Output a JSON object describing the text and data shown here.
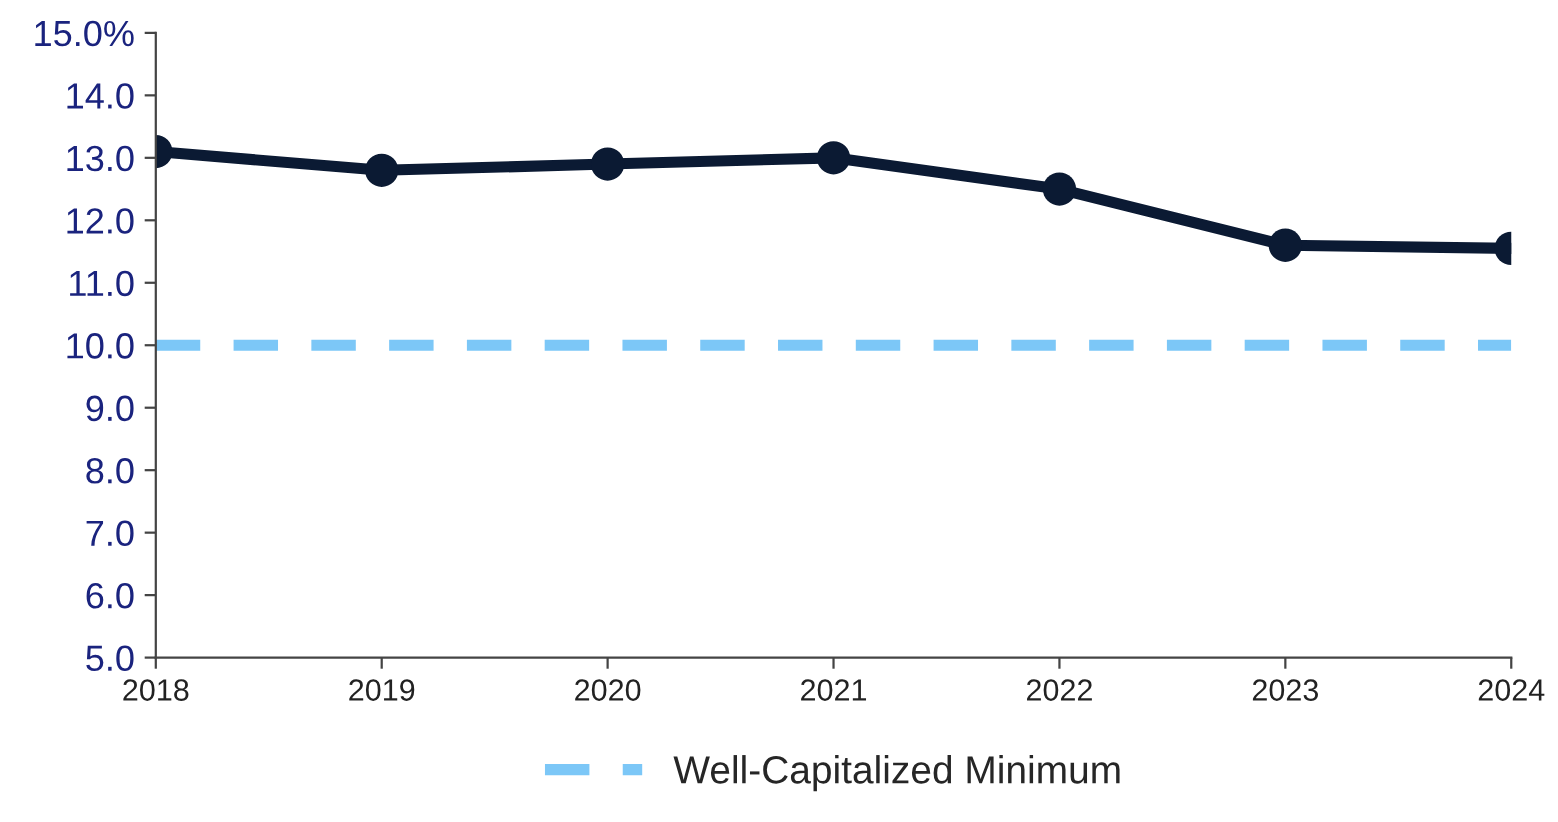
{
  "chart_data": {
    "type": "line",
    "x": [
      2018,
      2019,
      2020,
      2021,
      2022,
      2023,
      2024
    ],
    "series": [
      {
        "color": "#0b1a33",
        "values": [
          13.1,
          12.8,
          12.9,
          13.0,
          12.5,
          11.6,
          11.55
        ]
      }
    ],
    "ref_lines": [
      {
        "axis": "y",
        "value": 10.0,
        "label": "Well-Capitalized Minimum",
        "color": "#7cc7f7",
        "line_style": "dashed"
      }
    ],
    "xlim": [
      2018,
      2024
    ],
    "xticks": [
      2018,
      2019,
      2020,
      2021,
      2022,
      2023,
      2024
    ],
    "ylim": [
      5.0,
      15.0
    ],
    "yticks": [
      {
        "value": 5,
        "label": "5.0"
      },
      {
        "value": 6,
        "label": "6.0"
      },
      {
        "value": 7,
        "label": "7.0"
      },
      {
        "value": 8,
        "label": "8.0"
      },
      {
        "value": 9,
        "label": "9.0"
      },
      {
        "value": 10,
        "label": "10.0"
      },
      {
        "value": 11,
        "label": "11.0"
      },
      {
        "value": 12,
        "label": "12.0"
      },
      {
        "value": 13,
        "label": "13.0"
      },
      {
        "value": 14,
        "label": "14.0"
      },
      {
        "value": 15,
        "label": "15.0%"
      }
    ],
    "grid": false,
    "legend": "bottom",
    "marker": "circle",
    "line_style": "solid"
  }
}
